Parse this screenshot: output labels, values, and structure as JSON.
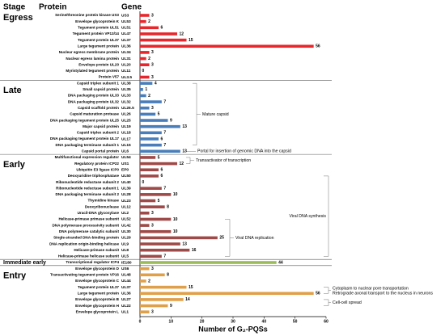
{
  "chart_data": {
    "type": "bar",
    "stage_header": "Stage",
    "protein_header": "Protein",
    "gene_header": "Gene",
    "x_label": "Number of G₂-PQSs",
    "xlim": [
      0,
      60
    ],
    "xticks": [
      0,
      10,
      20,
      30,
      40,
      50,
      60
    ],
    "groups": [
      {
        "name": "Egress",
        "color": "#e8262b",
        "proteins": [
          "Serine/threonine protein kinase US3",
          "Envelope glycoprotein K",
          "Tegument protein UL51",
          "Tegument protein VP13/14",
          "Tegument protein UL37",
          "Large tegument protein",
          "Nuclear egress membrane protein",
          "Nuclear egress lamina protein",
          "Envelope protein UL20",
          "Myristylated tegument protein",
          "Protein V57"
        ],
        "genes": [
          "US3",
          "UL53",
          "UL51",
          "UL47",
          "UL37",
          "UL36",
          "UL34",
          "UL31",
          "UL20",
          "UL11",
          "UL3.5"
        ],
        "values": [
          3,
          2,
          6,
          12,
          15,
          56,
          3,
          2,
          3,
          0,
          3
        ]
      },
      {
        "name": "Late",
        "color": "#4a7ebb",
        "proteins": [
          "Capsid triplex subunit 1",
          "Small capsid protein",
          "DNA packaging protein UL33",
          "DNA packaging protein UL32",
          "Capsid scaffold protein",
          "Capsid maturation protease",
          "DNA packaging tegument protein UL25",
          "Major capsid protein",
          "Capsid triplex subunit 2",
          "DNA packaging tegument protein UL17",
          "DNA packaging terminase subunit 1",
          "Capsid portal protein"
        ],
        "genes": [
          "UL38",
          "UL35",
          "UL33",
          "UL32",
          "UL26.5",
          "UL26",
          "UL25",
          "UL19",
          "UL18",
          "UL17",
          "UL15",
          "UL6"
        ],
        "values": [
          4,
          1,
          2,
          7,
          3,
          5,
          9,
          13,
          7,
          6,
          7,
          13
        ]
      },
      {
        "name": "Early",
        "color": "#9e4a48",
        "proteins": [
          "Multifunctional expression regulator",
          "Regulatory protein ICP22",
          "Ubiquitin E3 ligase ICP0",
          "Deoxyuridine triphosphatase",
          "Ribonucleotide reductase subunit 2",
          "Ribonucleotide reductase subunit 1",
          "DNA packaging terminase subunit 2",
          "Thymidine kinase",
          "Deoxyribonuclease",
          "Uracil-DNA glycosylase",
          "Helicase-primase primase subunit",
          "DNA polymerase processivity subunit",
          "DNA polymerase catalytic subunit",
          "Single-stranded DNA-binding protein",
          "DNA replication origin-binding helicase",
          "Helicase-primase subunit",
          "Helicase-primase helicase subunit"
        ],
        "genes": [
          "UL54",
          "US1",
          "EP0",
          "UL50",
          "UL40",
          "UL39",
          "UL28",
          "UL23",
          "UL12",
          "UL2",
          "UL52",
          "UL42",
          "UL30",
          "UL29",
          "UL9",
          "UL8",
          "UL5"
        ],
        "values": [
          5,
          12,
          6,
          6,
          0,
          7,
          10,
          5,
          8,
          3,
          10,
          3,
          10,
          25,
          13,
          16,
          7
        ]
      },
      {
        "name": "Immediate early",
        "color": "#9bbb59",
        "proteins": [
          "Transcriptional regulator ICP4"
        ],
        "genes": [
          "IE180"
        ],
        "values": [
          44
        ]
      },
      {
        "name": "Entry",
        "color": "#e0a04a",
        "proteins": [
          "Envelope glycoprotein D",
          "Transactivating tegument protein VP16",
          "Envelope glycoprotein C",
          "Tegument protein UL37",
          "Large tegument protein",
          "Envelope glycoprotein B",
          "Envelope glycoprotein H",
          "Envelope glycoprotein L"
        ],
        "genes": [
          "US6",
          "UL48",
          "UL44",
          "UL37",
          "UL36",
          "UL27",
          "UL22",
          "UL1"
        ],
        "values": [
          3,
          8,
          2,
          15,
          56,
          14,
          9,
          3
        ]
      }
    ],
    "annotations": [
      "Mature capsid",
      "Portal for insertion of genomic DNA into the capsid",
      "Transactivator of transcription",
      "Viral DNA synthesis",
      "Viral DNA replication",
      "Cytoplasm to nuclear pore transportation",
      "Retrograde axonal transport to the nucleus in neurons",
      "Cell-cell spread"
    ]
  }
}
